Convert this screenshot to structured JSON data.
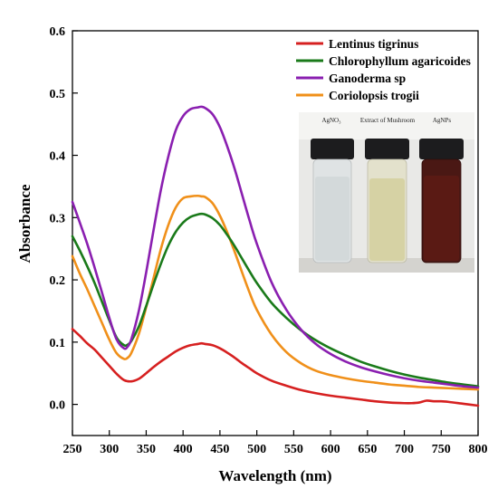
{
  "chart_data": {
    "type": "line",
    "xlabel": "Wavelength (nm)",
    "ylabel": "Absorbance",
    "xlim": [
      250,
      800
    ],
    "ylim": [
      -0.05,
      0.6
    ],
    "xticks": [
      250,
      300,
      350,
      400,
      450,
      500,
      550,
      600,
      650,
      700,
      750,
      800
    ],
    "yticks": [
      "0.0",
      "0.1",
      "0.2",
      "0.3",
      "0.4",
      "0.5",
      "0.6"
    ],
    "yticks_values": [
      0.0,
      0.1,
      0.2,
      0.3,
      0.4,
      0.5,
      0.6
    ],
    "grid": false,
    "legend_position": "top-right",
    "series": [
      {
        "name": "Lentinus tigrinus",
        "color": "#d62020",
        "x": [
          250,
          260,
          270,
          280,
          290,
          300,
          310,
          320,
          330,
          340,
          350,
          360,
          370,
          380,
          390,
          400,
          410,
          420,
          425,
          430,
          440,
          450,
          460,
          470,
          480,
          490,
          500,
          520,
          540,
          560,
          580,
          600,
          620,
          640,
          660,
          680,
          700,
          710,
          720,
          730,
          740,
          750,
          760,
          780,
          800
        ],
        "y": [
          0.121,
          0.11,
          0.098,
          0.088,
          0.075,
          0.062,
          0.049,
          0.039,
          0.037,
          0.041,
          0.05,
          0.06,
          0.069,
          0.077,
          0.085,
          0.091,
          0.095,
          0.097,
          0.098,
          0.097,
          0.095,
          0.09,
          0.083,
          0.075,
          0.066,
          0.058,
          0.05,
          0.038,
          0.03,
          0.023,
          0.018,
          0.014,
          0.011,
          0.008,
          0.005,
          0.003,
          0.002,
          0.002,
          0.003,
          0.006,
          0.005,
          0.005,
          0.004,
          0.001,
          -0.002
        ]
      },
      {
        "name": "Chlorophyllum agaricoides",
        "color": "#1a7a1a",
        "x": [
          250,
          260,
          270,
          280,
          290,
          300,
          310,
          320,
          325,
          330,
          340,
          350,
          360,
          370,
          380,
          390,
          400,
          410,
          420,
          425,
          430,
          440,
          450,
          460,
          470,
          480,
          490,
          500,
          520,
          540,
          560,
          580,
          600,
          620,
          640,
          660,
          680,
          700,
          720,
          740,
          760,
          780,
          800
        ],
        "y": [
          0.27,
          0.247,
          0.222,
          0.195,
          0.165,
          0.135,
          0.107,
          0.095,
          0.096,
          0.102,
          0.125,
          0.158,
          0.193,
          0.226,
          0.255,
          0.277,
          0.292,
          0.301,
          0.305,
          0.306,
          0.305,
          0.299,
          0.288,
          0.272,
          0.254,
          0.234,
          0.214,
          0.195,
          0.163,
          0.139,
          0.119,
          0.103,
          0.09,
          0.079,
          0.069,
          0.061,
          0.054,
          0.048,
          0.043,
          0.039,
          0.035,
          0.032,
          0.029
        ]
      },
      {
        "name": "Ganoderma sp",
        "color": "#8a1fb0",
        "x": [
          250,
          260,
          270,
          280,
          290,
          300,
          310,
          320,
          325,
          330,
          340,
          350,
          360,
          370,
          380,
          390,
          400,
          410,
          420,
          425,
          430,
          440,
          450,
          460,
          470,
          480,
          490,
          500,
          520,
          540,
          560,
          580,
          600,
          620,
          640,
          660,
          680,
          700,
          720,
          740,
          760,
          780,
          800
        ],
        "y": [
          0.325,
          0.292,
          0.258,
          0.22,
          0.18,
          0.139,
          0.104,
          0.09,
          0.093,
          0.105,
          0.15,
          0.212,
          0.28,
          0.345,
          0.398,
          0.44,
          0.463,
          0.474,
          0.477,
          0.478,
          0.476,
          0.466,
          0.445,
          0.414,
          0.378,
          0.337,
          0.296,
          0.258,
          0.196,
          0.152,
          0.12,
          0.097,
          0.081,
          0.069,
          0.06,
          0.053,
          0.047,
          0.042,
          0.038,
          0.035,
          0.032,
          0.029,
          0.027
        ]
      },
      {
        "name": "Coriolopsis trogii",
        "color": "#f0901a",
        "x": [
          250,
          260,
          270,
          280,
          290,
          300,
          310,
          320,
          325,
          330,
          340,
          350,
          360,
          370,
          380,
          390,
          400,
          410,
          420,
          425,
          430,
          440,
          450,
          460,
          470,
          480,
          490,
          500,
          520,
          540,
          560,
          580,
          600,
          620,
          640,
          660,
          680,
          700,
          720,
          740,
          760,
          780,
          800
        ],
        "y": [
          0.238,
          0.21,
          0.185,
          0.158,
          0.131,
          0.104,
          0.082,
          0.073,
          0.075,
          0.083,
          0.113,
          0.156,
          0.203,
          0.25,
          0.288,
          0.316,
          0.331,
          0.334,
          0.335,
          0.334,
          0.333,
          0.323,
          0.303,
          0.276,
          0.245,
          0.212,
          0.18,
          0.152,
          0.112,
          0.084,
          0.066,
          0.054,
          0.047,
          0.042,
          0.038,
          0.035,
          0.032,
          0.03,
          0.028,
          0.027,
          0.026,
          0.025,
          0.024
        ]
      }
    ],
    "inset": {
      "labels": [
        "AgNO₃",
        "Extract of Mushroom",
        "AgNPs"
      ]
    }
  }
}
